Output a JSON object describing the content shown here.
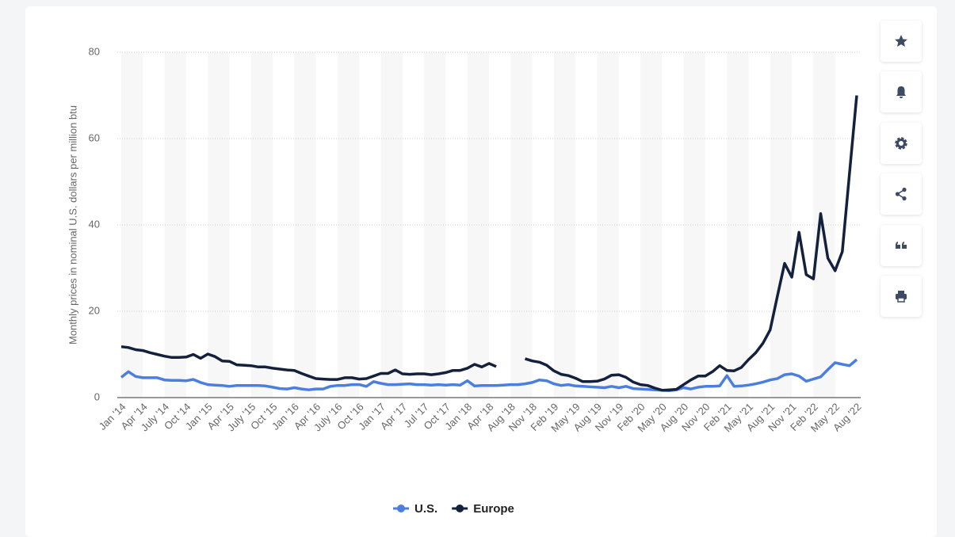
{
  "chart_data": {
    "type": "line",
    "y_label": "Monthly prices in nominal U.S. dollars per million btu",
    "categories": [
      "Jan '14",
      null,
      null,
      "Apr '14",
      null,
      null,
      "July '14",
      null,
      null,
      "Oct '14",
      null,
      null,
      "Jan '15",
      null,
      null,
      "Apr '15",
      null,
      null,
      "July '15",
      null,
      null,
      "Oct '15",
      null,
      null,
      "Jan '16",
      null,
      null,
      "Apr '16",
      null,
      null,
      "July '16",
      null,
      null,
      "Oct '16",
      null,
      null,
      "Jan '17",
      null,
      null,
      "Apr '17",
      null,
      null,
      "Jul '17",
      null,
      null,
      "Oct '17",
      null,
      null,
      "Jan '18",
      null,
      null,
      "Apr '18",
      null,
      null,
      "Aug '18",
      null,
      null,
      "Nov '18",
      null,
      null,
      "Feb '19",
      null,
      null,
      "May '19",
      null,
      null,
      "Aug '19",
      null,
      null,
      "Nov '19",
      null,
      null,
      "Feb '20",
      null,
      null,
      "May '20",
      null,
      null,
      "Aug '20",
      null,
      null,
      "Nov '20",
      null,
      null,
      "Feb '21",
      null,
      null,
      "May '21",
      null,
      null,
      "Aug '21",
      null,
      null,
      "Nov '21",
      null,
      null,
      "Feb '22",
      null,
      null,
      "May '22",
      null,
      null,
      "Aug '22"
    ],
    "series": [
      {
        "name": "U.S.",
        "color": "#4a7fe0",
        "values": [
          4.7,
          6.0,
          4.9,
          4.6,
          4.6,
          4.6,
          4.1,
          4.0,
          4.0,
          3.9,
          4.2,
          3.5,
          3.0,
          2.9,
          2.8,
          2.6,
          2.8,
          2.8,
          2.8,
          2.8,
          2.7,
          2.4,
          2.1,
          2.0,
          2.3,
          2.0,
          1.8,
          2.0,
          2.0,
          2.6,
          2.8,
          2.8,
          3.0,
          3.0,
          2.6,
          3.7,
          3.3,
          3.0,
          3.0,
          3.1,
          3.2,
          3.0,
          3.0,
          2.9,
          3.0,
          2.9,
          3.0,
          2.9,
          3.9,
          2.7,
          2.8,
          2.8,
          2.8,
          2.9,
          3.0,
          3.0,
          3.2,
          3.5,
          4.1,
          3.9,
          3.2,
          2.8,
          3.0,
          2.7,
          2.6,
          2.5,
          2.4,
          2.3,
          2.6,
          2.3,
          2.6,
          2.1,
          2.0,
          1.9,
          1.8,
          1.7,
          1.6,
          1.8,
          2.3,
          2.0,
          2.4,
          2.6,
          2.6,
          2.7,
          5.1,
          2.6,
          2.7,
          2.9,
          3.2,
          3.6,
          4.1,
          4.4,
          5.3,
          5.5,
          5.0,
          3.8,
          4.3,
          4.8,
          6.5,
          8.1,
          7.7,
          7.4,
          8.8
        ]
      },
      {
        "name": "Europe",
        "color": "#14213d",
        "values": [
          11.8,
          11.6,
          11.1,
          10.9,
          10.4,
          10.0,
          9.6,
          9.3,
          9.3,
          9.4,
          10.0,
          9.1,
          10.1,
          9.5,
          8.5,
          8.4,
          7.6,
          7.5,
          7.4,
          7.1,
          7.1,
          6.8,
          6.6,
          6.4,
          6.3,
          5.6,
          5.0,
          4.4,
          4.3,
          4.2,
          4.2,
          4.6,
          4.6,
          4.3,
          4.4,
          5.0,
          5.6,
          5.6,
          6.4,
          5.5,
          5.4,
          5.5,
          5.5,
          5.3,
          5.5,
          5.8,
          6.3,
          6.3,
          6.8,
          7.7,
          7.1,
          7.9,
          7.2,
          null,
          null,
          null,
          9.0,
          8.5,
          8.2,
          7.5,
          6.2,
          5.4,
          5.1,
          4.5,
          3.7,
          3.7,
          3.8,
          4.3,
          5.2,
          5.3,
          4.7,
          3.6,
          3.0,
          2.8,
          2.2,
          1.7,
          1.8,
          1.9,
          3.0,
          4.1,
          5.0,
          5.0,
          6.0,
          7.4,
          6.3,
          6.2,
          7.0,
          8.8,
          10.4,
          12.6,
          15.7,
          23.5,
          31.1,
          27.9,
          38.3,
          28.5,
          27.5,
          42.6,
          32.3,
          29.4,
          33.8,
          52.0,
          70.0
        ]
      }
    ],
    "ylim": [
      0,
      80
    ],
    "yticks": [
      0,
      20,
      40,
      60,
      80
    ],
    "grid": true
  }
}
